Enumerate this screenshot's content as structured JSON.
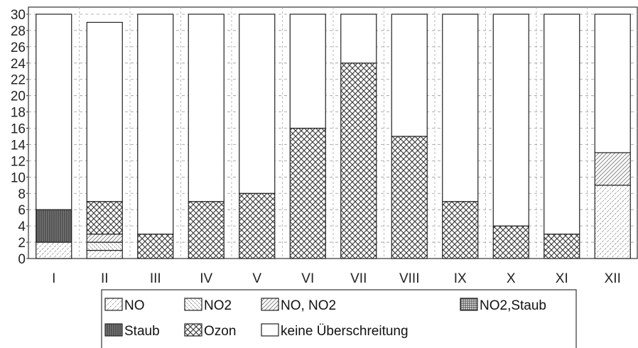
{
  "chart_data": {
    "type": "bar",
    "stacked": true,
    "categories": [
      "I",
      "II",
      "III",
      "IV",
      "V",
      "VI",
      "VII",
      "VIII",
      "IX",
      "X",
      "XI",
      "XII"
    ],
    "ylim": [
      0,
      30
    ],
    "yticks": [
      0,
      2,
      4,
      6,
      8,
      10,
      12,
      14,
      16,
      18,
      20,
      22,
      24,
      26,
      28,
      30
    ],
    "grid": true,
    "legend_position": "bottom",
    "series": [
      {
        "name": "NO",
        "values": [
          2,
          1,
          0,
          0,
          0,
          0,
          0,
          0,
          0,
          0,
          0,
          9
        ]
      },
      {
        "name": "NO2",
        "values": [
          0,
          1,
          0,
          0,
          0,
          0,
          0,
          0,
          0,
          0,
          0,
          0
        ]
      },
      {
        "name": "NO, NO2",
        "values": [
          0,
          1,
          0,
          0,
          0,
          0,
          0,
          0,
          0,
          0,
          0,
          4
        ]
      },
      {
        "name": "NO2,Staub",
        "values": [
          0,
          0,
          0,
          0,
          0,
          0,
          0,
          0,
          0,
          0,
          0,
          0
        ]
      },
      {
        "name": "Staub",
        "values": [
          4,
          0,
          0,
          0,
          0,
          0,
          0,
          0,
          0,
          0,
          0,
          0
        ]
      },
      {
        "name": "Ozon",
        "values": [
          0,
          4,
          3,
          7,
          8,
          16,
          24,
          15,
          7,
          4,
          3,
          0
        ]
      },
      {
        "name": "keine Überschreitung",
        "values": [
          24,
          22,
          27,
          23,
          22,
          14,
          6,
          15,
          23,
          26,
          27,
          17
        ]
      }
    ]
  }
}
